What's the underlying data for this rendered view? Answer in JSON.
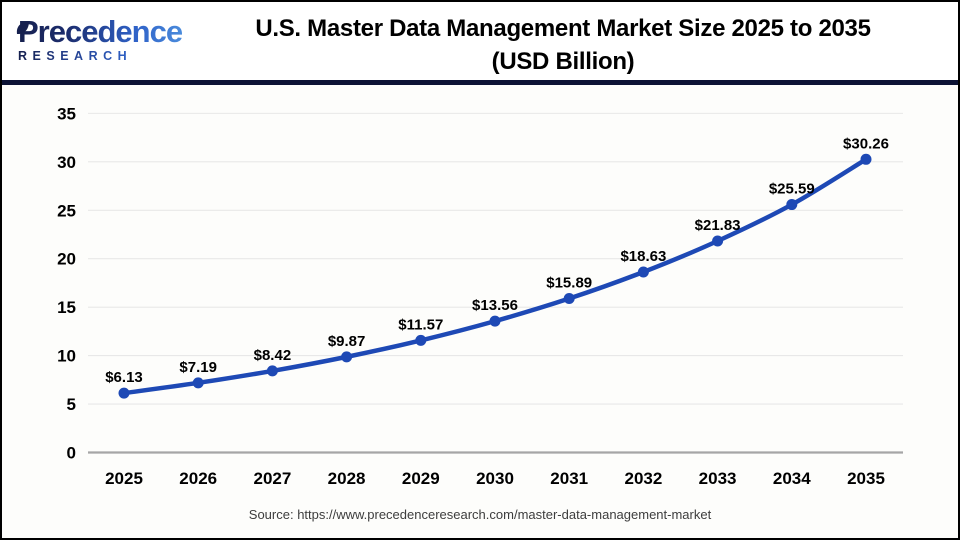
{
  "header": {
    "logo": {
      "line1": "Precedence",
      "line2": "RESEARCH"
    },
    "title_line1": "U.S. Master Data Management Market Size 2025 to 2035",
    "title_line2": "(USD Billion)"
  },
  "chart_data": {
    "type": "line",
    "title": "U.S. Master Data Management Market Size 2025 to 2035 (USD Billion)",
    "categories": [
      "2025",
      "2026",
      "2027",
      "2028",
      "2029",
      "2030",
      "2031",
      "2032",
      "2033",
      "2034",
      "2035"
    ],
    "values": [
      6.13,
      7.19,
      8.42,
      9.87,
      11.57,
      13.56,
      15.89,
      18.63,
      21.83,
      25.59,
      30.26
    ],
    "point_labels": [
      "$6.13",
      "$7.19",
      "$8.42",
      "$9.87",
      "$11.57",
      "$13.56",
      "$15.89",
      "$18.63",
      "$21.83",
      "$25.59",
      "$30.26"
    ],
    "xlabel": "",
    "ylabel": "",
    "ylim": [
      0,
      35
    ],
    "ytick_step": 5,
    "grid": true,
    "legend": "none",
    "line_color": "#1e49b5",
    "marker_color": "#1e49b5",
    "grid_color": "#e8e8e8",
    "zero_axis_color": "#a6a6a6",
    "tick_label_color": "#000000",
    "data_label_color": "#000000"
  },
  "footer": {
    "source": "Source: https://www.precedenceresearch.com/master-data-management-market",
    "source_color": "#3d3d3d"
  }
}
